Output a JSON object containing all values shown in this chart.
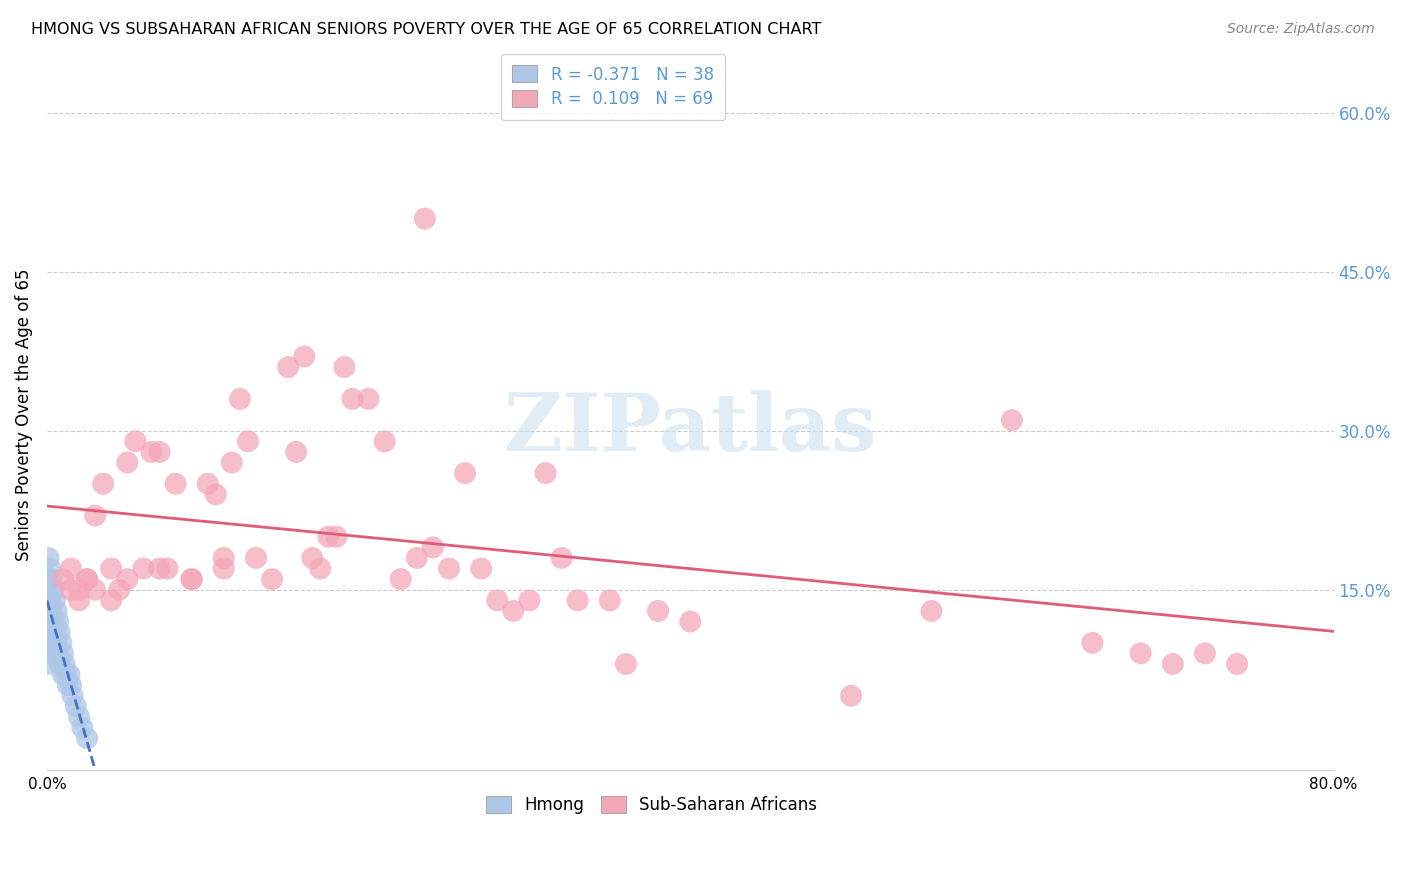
{
  "title": "HMONG VS SUBSAHARAN AFRICAN SENIORS POVERTY OVER THE AGE OF 65 CORRELATION CHART",
  "source": "Source: ZipAtlas.com",
  "ylabel": "Seniors Poverty Over the Age of 65",
  "xlim": [
    0.0,
    0.8
  ],
  "ylim": [
    -0.02,
    0.65
  ],
  "plot_ylim": [
    0.0,
    0.65
  ],
  "xticks": [
    0.0,
    0.1,
    0.2,
    0.3,
    0.4,
    0.5,
    0.6,
    0.7,
    0.8
  ],
  "xtick_labels": [
    "0.0%",
    "",
    "",
    "",
    "",
    "",
    "",
    "",
    "80.0%"
  ],
  "ytick_positions": [
    0.15,
    0.3,
    0.45,
    0.6
  ],
  "ytick_labels": [
    "15.0%",
    "30.0%",
    "45.0%",
    "60.0%"
  ],
  "right_axis_color": "#5b9bd5",
  "background_color": "#ffffff",
  "watermark_text": "ZIPatlas",
  "hmong_color": "#aec6e8",
  "subsaharan_color": "#f4a7b9",
  "hmong_line_color": "#4472c4",
  "subsaharan_line_color": "#e05c7a",
  "hmong_x": [
    0.0,
    0.0,
    0.0,
    0.0,
    0.0,
    0.001,
    0.001,
    0.001,
    0.001,
    0.002,
    0.002,
    0.002,
    0.003,
    0.003,
    0.003,
    0.004,
    0.004,
    0.005,
    0.005,
    0.006,
    0.006,
    0.007,
    0.007,
    0.008,
    0.008,
    0.009,
    0.01,
    0.01,
    0.011,
    0.012,
    0.013,
    0.014,
    0.015,
    0.016,
    0.018,
    0.02,
    0.022,
    0.025
  ],
  "hmong_y": [
    0.16,
    0.14,
    0.12,
    0.1,
    0.08,
    0.18,
    0.15,
    0.13,
    0.11,
    0.17,
    0.14,
    0.1,
    0.16,
    0.13,
    0.09,
    0.15,
    0.12,
    0.14,
    0.11,
    0.13,
    0.1,
    0.12,
    0.09,
    0.11,
    0.08,
    0.1,
    0.09,
    0.07,
    0.08,
    0.07,
    0.06,
    0.07,
    0.06,
    0.05,
    0.04,
    0.03,
    0.02,
    0.01
  ],
  "subsaharan_x": [
    0.01,
    0.015,
    0.02,
    0.025,
    0.03,
    0.035,
    0.04,
    0.045,
    0.05,
    0.055,
    0.06,
    0.065,
    0.07,
    0.075,
    0.08,
    0.09,
    0.1,
    0.105,
    0.11,
    0.115,
    0.12,
    0.125,
    0.13,
    0.14,
    0.15,
    0.155,
    0.16,
    0.165,
    0.17,
    0.175,
    0.18,
    0.185,
    0.19,
    0.2,
    0.21,
    0.22,
    0.23,
    0.235,
    0.24,
    0.25,
    0.26,
    0.27,
    0.28,
    0.29,
    0.3,
    0.31,
    0.32,
    0.33,
    0.35,
    0.36,
    0.38,
    0.4,
    0.5,
    0.55,
    0.6,
    0.65,
    0.68,
    0.7,
    0.72,
    0.74,
    0.015,
    0.02,
    0.025,
    0.03,
    0.04,
    0.05,
    0.07,
    0.09,
    0.11
  ],
  "subsaharan_y": [
    0.16,
    0.17,
    0.15,
    0.16,
    0.22,
    0.25,
    0.17,
    0.15,
    0.27,
    0.29,
    0.17,
    0.28,
    0.28,
    0.17,
    0.25,
    0.16,
    0.25,
    0.24,
    0.17,
    0.27,
    0.33,
    0.29,
    0.18,
    0.16,
    0.36,
    0.28,
    0.37,
    0.18,
    0.17,
    0.2,
    0.2,
    0.36,
    0.33,
    0.33,
    0.29,
    0.16,
    0.18,
    0.5,
    0.19,
    0.17,
    0.26,
    0.17,
    0.14,
    0.13,
    0.14,
    0.26,
    0.18,
    0.14,
    0.14,
    0.08,
    0.13,
    0.12,
    0.05,
    0.13,
    0.31,
    0.1,
    0.09,
    0.08,
    0.09,
    0.08,
    0.15,
    0.14,
    0.16,
    0.15,
    0.14,
    0.16,
    0.17,
    0.16,
    0.18
  ],
  "hmong_R": -0.371,
  "hmong_N": 38,
  "subsaharan_R": 0.109,
  "subsaharan_N": 69
}
